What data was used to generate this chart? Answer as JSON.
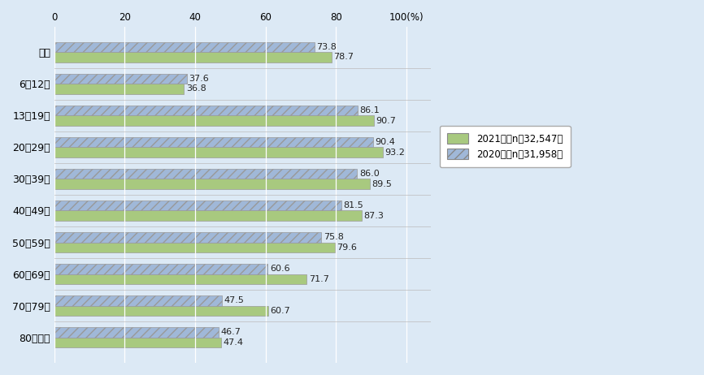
{
  "categories": [
    "全体",
    "6～12歳",
    "13～19歳",
    "20～29歳",
    "30～39歳",
    "40～49歳",
    "50～59歳",
    "60～69歳",
    "70～79歳",
    "80歳以上"
  ],
  "values_2021": [
    78.7,
    36.8,
    90.7,
    93.2,
    89.5,
    87.3,
    79.6,
    71.7,
    60.7,
    47.4
  ],
  "values_2020": [
    73.8,
    37.6,
    86.1,
    90.4,
    86.0,
    81.5,
    75.8,
    60.6,
    47.5,
    46.7
  ],
  "color_2021": "#a8c97f",
  "color_2020": "#a0b8d8",
  "hatch_2020": "///",
  "legend_2021": "2021年（n＝32,547）",
  "legend_2020": "2020年（n＝31,958）",
  "xlim": [
    0,
    107
  ],
  "xticks": [
    0,
    20,
    40,
    60,
    80,
    100
  ],
  "xlabel_suffix": "(%)",
  "background_color": "#dce9f5",
  "plot_bg_color": "#dce9f5",
  "bar_height": 0.32,
  "fontsize_label": 9,
  "fontsize_value": 8,
  "fontsize_legend": 8.5,
  "fontsize_tick": 8.5
}
